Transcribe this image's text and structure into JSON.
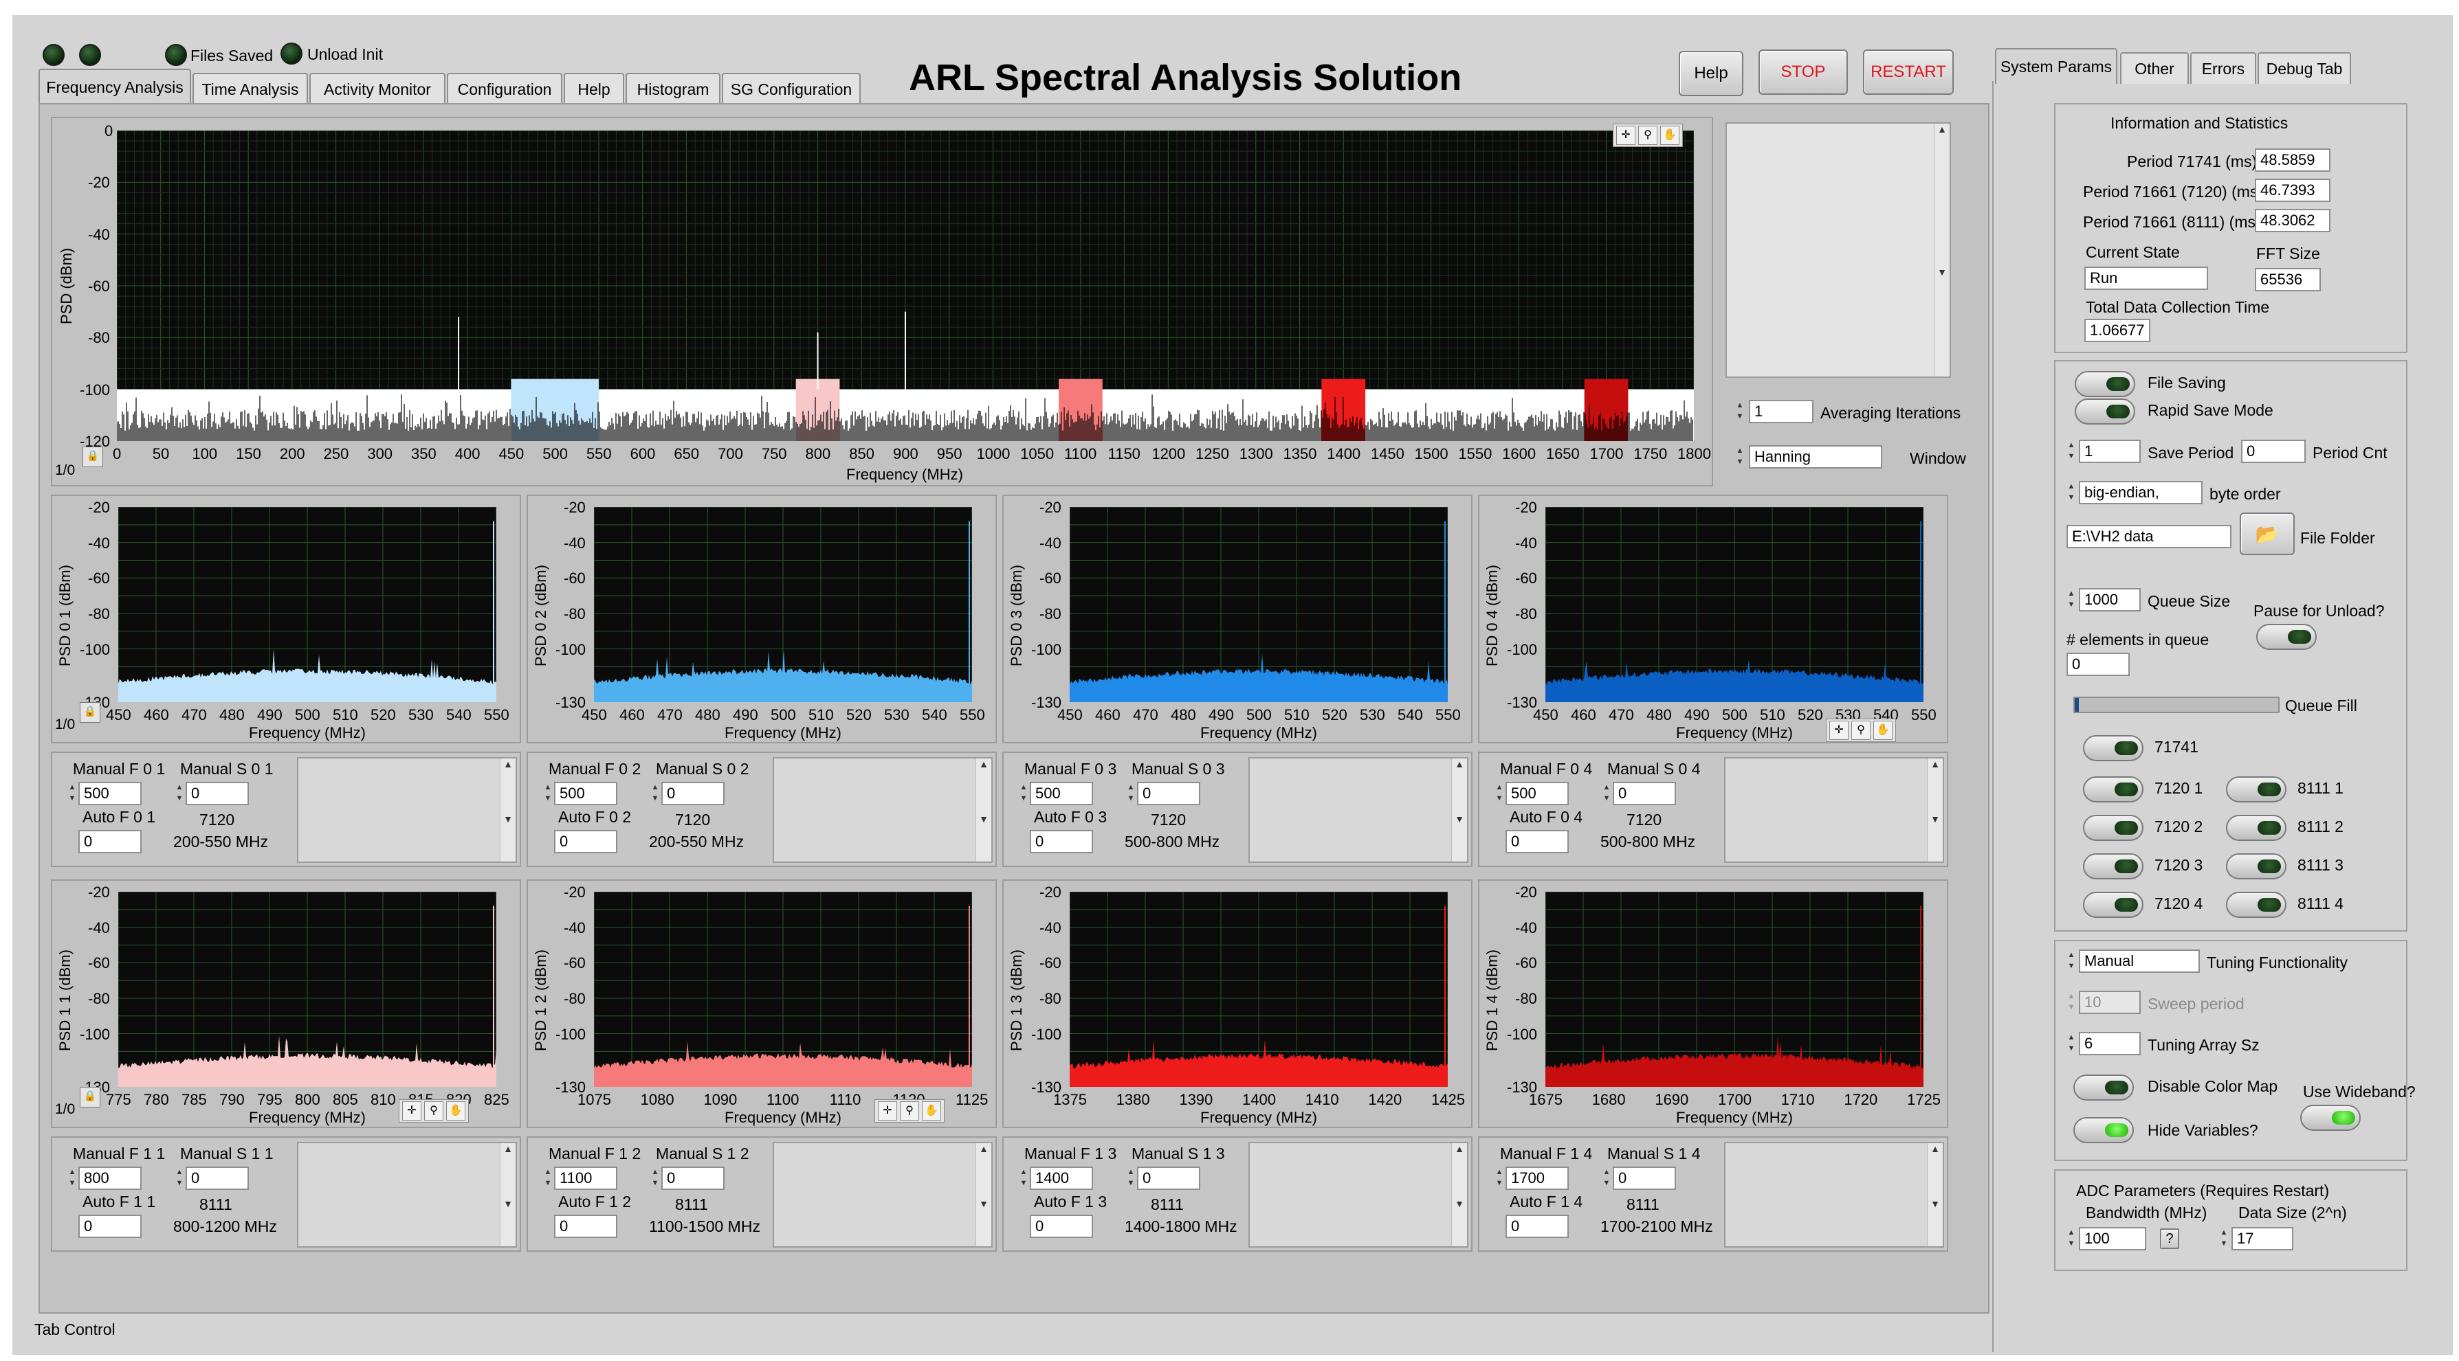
{
  "app_title": "ARL Spectral Analysis Solution",
  "indicators": {
    "files_saved": "Files Saved",
    "unload_init": "Unload Init"
  },
  "tabs": [
    "Frequency Analysis",
    "Time Analysis",
    "Activity Monitor",
    "Configuration",
    "Help",
    "Histogram",
    "SG Configuration"
  ],
  "buttons": {
    "help": "Help",
    "stop": "STOP",
    "restart": "RESTART"
  },
  "colors": {
    "stop_text": "#e0161e",
    "plot_bg": "#0b0b0b",
    "grid": "#2e5a2e",
    "light_blue": "#bfe4fb",
    "mid_blue": "#4fb0f0",
    "blue": "#1f8ae8",
    "dark_blue": "#0b5fc2",
    "pink": "#f8c8c8",
    "salmon": "#f77a7a",
    "red": "#ee1b1b",
    "dark_red": "#c70e0e",
    "toggle_on": "#19b000"
  },
  "main_plot": {
    "ylabel": "PSD (dBm)",
    "xlabel": "Frequency (MHz)",
    "yticks": [
      "0",
      "-20",
      "-40",
      "-60",
      "-80",
      "-100",
      "-120"
    ],
    "xticks": [
      "0",
      "50",
      "100",
      "150",
      "200",
      "250",
      "300",
      "350",
      "400",
      "450",
      "500",
      "550",
      "600",
      "650",
      "700",
      "750",
      "800",
      "850",
      "900",
      "950",
      "1000",
      "1050",
      "1100",
      "1150",
      "1200",
      "1250",
      "1300",
      "1350",
      "1400",
      "1450",
      "1500",
      "1550",
      "1600",
      "1650",
      "1700",
      "1750",
      "1800"
    ],
    "scale_label": "1/0",
    "highlight_bands": [
      {
        "from": 450,
        "to": 550,
        "color": "#bfe4fb"
      },
      {
        "from": 775,
        "to": 825,
        "color": "#f8c8c8"
      },
      {
        "from": 1075,
        "to": 1125,
        "color": "#f77a7a"
      },
      {
        "from": 1375,
        "to": 1425,
        "color": "#ee1b1b"
      },
      {
        "from": 1675,
        "to": 1725,
        "color": "#c70e0e"
      }
    ]
  },
  "averaging": {
    "value": "1",
    "label": "Averaging Iterations"
  },
  "window": {
    "value": "Hanning",
    "label": "Window"
  },
  "subplots_row1": [
    {
      "ylabel": "PSD 0 1 (dBm)",
      "xlabel": "Frequency (MHz)",
      "xticks": [
        "450",
        "460",
        "470",
        "480",
        "490",
        "500",
        "510",
        "520",
        "530",
        "540",
        "550"
      ],
      "yticks": [
        "-20",
        "-40",
        "-60",
        "-80",
        "-100",
        "-130"
      ],
      "color": "#bfe4fb",
      "scale_label": "1/0"
    },
    {
      "ylabel": "PSD 0 2 (dBm)",
      "xlabel": "Frequency (MHz)",
      "xticks": [
        "450",
        "460",
        "470",
        "480",
        "490",
        "500",
        "510",
        "520",
        "530",
        "540",
        "550"
      ],
      "yticks": [
        "-20",
        "-40",
        "-60",
        "-80",
        "-100",
        "-130"
      ],
      "color": "#4fb0f0"
    },
    {
      "ylabel": "PSD 0 3 (dBm)",
      "xlabel": "Frequency (MHz)",
      "xticks": [
        "450",
        "460",
        "470",
        "480",
        "490",
        "500",
        "510",
        "520",
        "530",
        "540",
        "550"
      ],
      "yticks": [
        "-20",
        "-40",
        "-60",
        "-80",
        "-100",
        "-130"
      ],
      "color": "#1f8ae8"
    },
    {
      "ylabel": "PSD 0 4 (dBm)",
      "xlabel": "Frequency (MHz)",
      "xticks": [
        "450",
        "460",
        "470",
        "480",
        "490",
        "500",
        "510",
        "520",
        "530",
        "540",
        "550"
      ],
      "yticks": [
        "-20",
        "-40",
        "-60",
        "-80",
        "-100",
        "-130"
      ],
      "color": "#0b5fc2"
    }
  ],
  "subplots_row2": [
    {
      "ylabel": "PSD 1 1 (dBm)",
      "xlabel": "Frequency (MHz)",
      "xticks": [
        "775",
        "780",
        "785",
        "790",
        "795",
        "800",
        "805",
        "810",
        "815",
        "820",
        "825"
      ],
      "yticks": [
        "-20",
        "-40",
        "-60",
        "-80",
        "-100",
        "-130"
      ],
      "color": "#f8c8c8",
      "scale_label": "1/0"
    },
    {
      "ylabel": "PSD 1 2 (dBm)",
      "xlabel": "Frequency (MHz)",
      "xticks": [
        "1075",
        "1080",
        "1090",
        "1100",
        "1110",
        "1120",
        "1125"
      ],
      "yticks": [
        "-20",
        "-40",
        "-60",
        "-80",
        "-100",
        "-130"
      ],
      "color": "#f77a7a"
    },
    {
      "ylabel": "PSD 1 3 (dBm)",
      "xlabel": "Frequency (MHz)",
      "xticks": [
        "1375",
        "1380",
        "1390",
        "1400",
        "1410",
        "1420",
        "1425"
      ],
      "yticks": [
        "-20",
        "-40",
        "-60",
        "-80",
        "-100",
        "-130"
      ],
      "color": "#ee1b1b"
    },
    {
      "ylabel": "PSD 1 4 (dBm)",
      "xlabel": "Frequency (MHz)",
      "xticks": [
        "1675",
        "1680",
        "1690",
        "1700",
        "1710",
        "1720",
        "1725"
      ],
      "yticks": [
        "-20",
        "-40",
        "-60",
        "-80",
        "-100",
        "-130"
      ],
      "color": "#c70e0e"
    }
  ],
  "controls_row1": [
    {
      "manual_f_label": "Manual F 0 1",
      "manual_f": "500",
      "manual_s_label": "Manual S 0 1",
      "manual_s": "0",
      "auto_f_label": "Auto F 0 1",
      "auto_f": "0",
      "device": "7120",
      "range": "200-550 MHz"
    },
    {
      "manual_f_label": "Manual F 0 2",
      "manual_f": "500",
      "manual_s_label": "Manual S 0 2",
      "manual_s": "0",
      "auto_f_label": "Auto F 0 2",
      "auto_f": "0",
      "device": "7120",
      "range": "200-550 MHz"
    },
    {
      "manual_f_label": "Manual F 0 3",
      "manual_f": "500",
      "manual_s_label": "Manual S 0 3",
      "manual_s": "0",
      "auto_f_label": "Auto F 0 3",
      "auto_f": "0",
      "device": "7120",
      "range": "500-800 MHz"
    },
    {
      "manual_f_label": "Manual F 0 4",
      "manual_f": "500",
      "manual_s_label": "Manual S 0 4",
      "manual_s": "0",
      "auto_f_label": "Auto F 0 4",
      "auto_f": "0",
      "device": "7120",
      "range": "500-800 MHz"
    }
  ],
  "controls_row2": [
    {
      "manual_f_label": "Manual F 1 1",
      "manual_f": "800",
      "manual_s_label": "Manual S 1 1",
      "manual_s": "0",
      "auto_f_label": "Auto F 1 1",
      "auto_f": "0",
      "device": "8111",
      "range": "800-1200 MHz"
    },
    {
      "manual_f_label": "Manual F 1 2",
      "manual_f": "1100",
      "manual_s_label": "Manual S 1 2",
      "manual_s": "0",
      "auto_f_label": "Auto F 1 2",
      "auto_f": "0",
      "device": "8111",
      "range": "1100-1500 MHz"
    },
    {
      "manual_f_label": "Manual F 1 3",
      "manual_f": "1400",
      "manual_s_label": "Manual S 1 3",
      "manual_s": "0",
      "auto_f_label": "Auto F 1 3",
      "auto_f": "0",
      "device": "8111",
      "range": "1400-1800 MHz"
    },
    {
      "manual_f_label": "Manual F 1 4",
      "manual_f": "1700",
      "manual_s_label": "Manual S 1 4",
      "manual_s": "0",
      "auto_f_label": "Auto F 1 4",
      "auto_f": "0",
      "device": "8111",
      "range": "1700-2100 MHz"
    }
  ],
  "status_bar": "Tab Control",
  "right_tabs": [
    "System Params",
    "Other",
    "Errors",
    "Debug Tab"
  ],
  "info": {
    "title": "Information and Statistics",
    "period_71741_label": "Period 71741 (ms)",
    "period_71741": "48.5859",
    "period_71661_7120_label": "Period 71661 (7120) (ms)",
    "period_71661_7120": "46.7393",
    "period_71661_8111_label": "Period 71661 (8111) (ms)",
    "period_71661_8111": "48.3062",
    "current_state_label": "Current State",
    "current_state": "Run",
    "fft_size_label": "FFT Size",
    "fft_size": "65536",
    "total_time_label": "Total Data Collection Time",
    "total_time": "1.06677"
  },
  "saving": {
    "file_saving": "File Saving",
    "rapid_save": "Rapid Save Mode",
    "save_period_label": "Save Period",
    "save_period": "1",
    "period_cnt_label": "Period Cnt",
    "period_cnt": "0",
    "byte_order_label": "byte order",
    "byte_order": "big-endian,",
    "file_folder_label": "File Folder",
    "file_folder": "E:\\VH2 data",
    "queue_size_label": "Queue Size",
    "queue_size": "1000",
    "pause_unload": "Pause for Unload?",
    "elements_label": "# elements in queue",
    "elements": "0",
    "queue_fill_label": "Queue Fill",
    "device_71741": "71741",
    "devices_left": [
      "7120 1",
      "7120 2",
      "7120 3",
      "7120 4"
    ],
    "devices_right": [
      "8111 1",
      "8111 2",
      "8111 3",
      "8111 4"
    ]
  },
  "tuning": {
    "mode": "Manual",
    "mode_label": "Tuning Functionality",
    "sweep": "10",
    "sweep_label": "Sweep period",
    "array_sz": "6",
    "array_sz_label": "Tuning Array Sz",
    "disable_color_map": "Disable Color Map",
    "use_wideband": "Use Wideband?",
    "hide_variables": "Hide Variables?"
  },
  "adc": {
    "title": "ADC Parameters (Requires Restart)",
    "bandwidth_label": "Bandwidth (MHz)",
    "bandwidth": "100",
    "data_size_label": "Data Size (2^n)",
    "data_size": "17",
    "help_symbol": "?"
  }
}
